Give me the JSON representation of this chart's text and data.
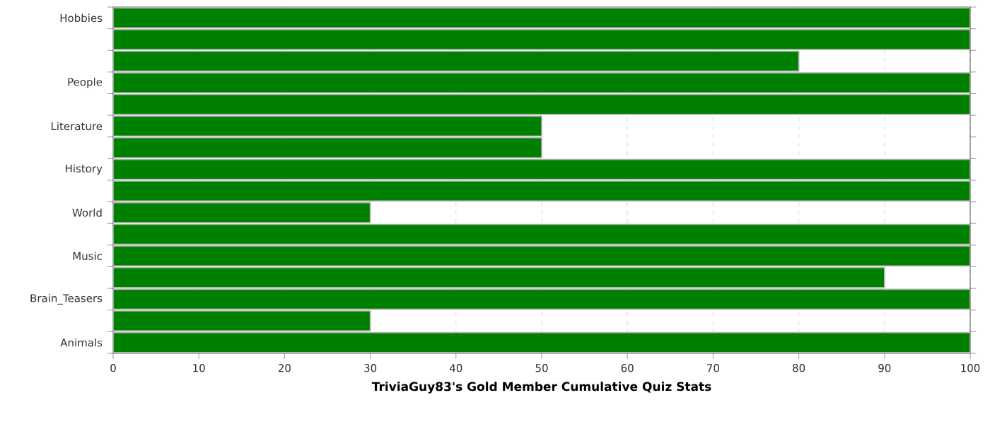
{
  "chart_data": {
    "type": "bar",
    "orientation": "horizontal",
    "title": "TriviaGuy83's Gold Member Cumulative Quiz Stats",
    "categories": [
      "Hobbies",
      null,
      null,
      "People",
      null,
      "Literature",
      null,
      "History",
      null,
      "World",
      null,
      "Music",
      null,
      "Brain_Teasers",
      null,
      "Animals"
    ],
    "values": [
      100,
      100,
      80,
      100,
      100,
      50,
      50,
      100,
      100,
      30,
      100,
      100,
      90,
      100,
      30,
      100
    ],
    "color": "#008000",
    "xlim": [
      0,
      100
    ],
    "xticks": [
      0,
      10,
      20,
      30,
      40,
      50,
      60,
      70,
      80,
      90,
      100
    ],
    "grid": "x"
  }
}
